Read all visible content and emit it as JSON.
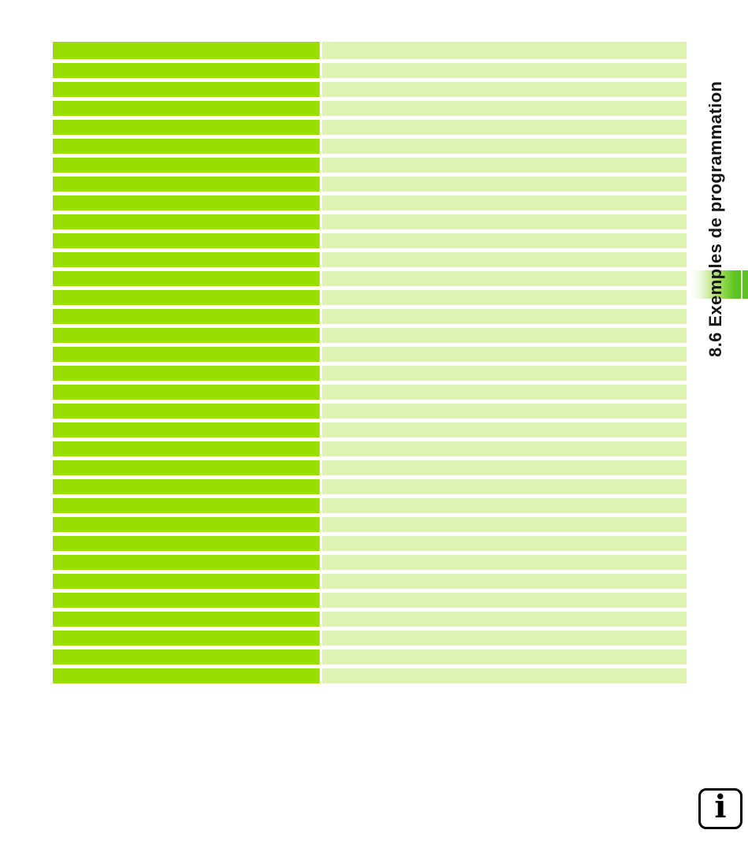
{
  "sidebar": {
    "chapter_title": "8.6 Exemples de programmation"
  },
  "table": {
    "row_count": 34,
    "columns": 2,
    "cells_empty": true
  },
  "info": {
    "glyph": "i"
  },
  "colors": {
    "row_left_green": "#9ade00",
    "row_right_green": "#def2b4",
    "tab_green": "#5cc41e",
    "title_text": "#161616",
    "info_icon_border": "#000000"
  }
}
